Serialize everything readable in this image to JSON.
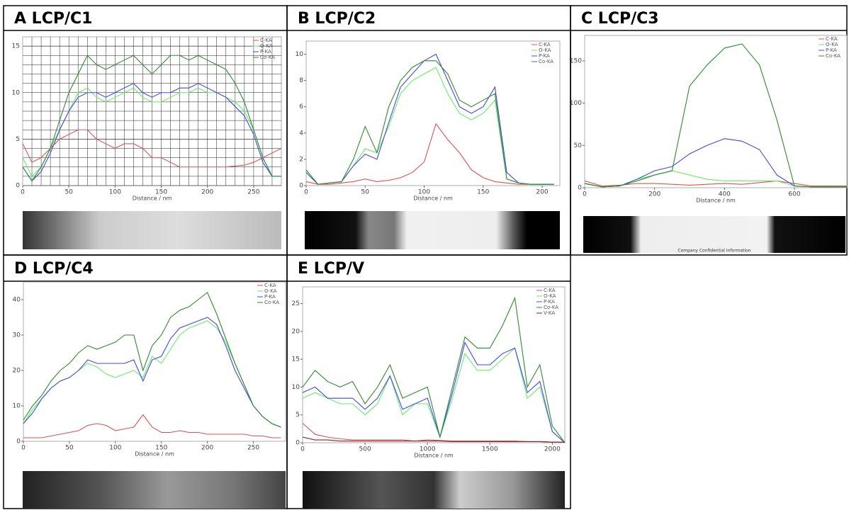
{
  "chart_data": [
    {
      "type": "line",
      "title": "A  LCP/C1",
      "x_label": "Distance / nm",
      "grid": true,
      "xlim": [
        0,
        280
      ],
      "ylim": [
        0,
        16
      ],
      "xticks": [
        0,
        50,
        100,
        150,
        200,
        250
      ],
      "yticks": [
        0,
        5,
        10,
        15
      ],
      "x": [
        0,
        10,
        20,
        30,
        40,
        50,
        60,
        70,
        80,
        90,
        100,
        110,
        120,
        130,
        140,
        150,
        160,
        170,
        180,
        190,
        200,
        210,
        220,
        230,
        240,
        250,
        260,
        270,
        280
      ],
      "series": [
        {
          "name": "C-KA",
          "color": "#e05050",
          "values": [
            4.5,
            2.5,
            3,
            4,
            5,
            5.5,
            6,
            6,
            5,
            4.5,
            4,
            4.5,
            4.5,
            4,
            3,
            3,
            2.5,
            2,
            2,
            2,
            2,
            2,
            2,
            2.1,
            2.2,
            2.5,
            3,
            3.5,
            4
          ]
        },
        {
          "name": "O-KA",
          "color": "#66ee66",
          "values": [
            3,
            1,
            2,
            4,
            6,
            8,
            10,
            10.5,
            9.5,
            9,
            9.5,
            10,
            10.5,
            9.5,
            9,
            9,
            9.5,
            10,
            10,
            10.5,
            10,
            10,
            9.5,
            9,
            8,
            6,
            3,
            1,
            1
          ]
        },
        {
          "name": "P-KA",
          "color": "#4444ee",
          "values": [
            2,
            0.5,
            1.5,
            3.5,
            6,
            8,
            9.5,
            10,
            10,
            9.5,
            10,
            10.5,
            11,
            10,
            9.5,
            10,
            10,
            10.5,
            10.5,
            11,
            10.5,
            10,
            9.5,
            8.5,
            7.5,
            5.5,
            2.5,
            1,
            1
          ]
        },
        {
          "name": "Co-KA",
          "color": "#2e8b2e",
          "values": [
            2,
            0.5,
            2,
            4,
            7,
            10,
            12,
            14,
            13,
            12.5,
            13,
            13.5,
            14,
            13,
            12,
            13,
            14,
            14,
            13.5,
            14,
            13.5,
            13,
            12.5,
            11,
            9,
            6,
            3,
            1,
            1
          ]
        }
      ]
    },
    {
      "type": "line",
      "title": "B  LCP/C2",
      "x_label": "Distance / nm",
      "grid": false,
      "xlim": [
        0,
        215
      ],
      "ylim": [
        0,
        11
      ],
      "xticks": [
        0,
        50,
        100,
        150,
        200
      ],
      "yticks": [
        0,
        2,
        4,
        6,
        8,
        10
      ],
      "x": [
        0,
        10,
        20,
        30,
        40,
        50,
        60,
        70,
        80,
        90,
        100,
        110,
        120,
        130,
        140,
        150,
        160,
        170,
        180,
        190,
        200,
        210
      ],
      "series": [
        {
          "name": "C-KA",
          "color": "#e05050",
          "values": [
            0.3,
            0.1,
            0.1,
            0.2,
            0.3,
            0.5,
            0.3,
            0.4,
            0.6,
            1,
            1.8,
            4.7,
            3.5,
            2.5,
            1.2,
            0.6,
            0.3,
            0.2,
            0.1,
            0.1,
            0.1,
            0.1
          ]
        },
        {
          "name": "O-KA",
          "color": "#66ee66",
          "values": [
            1,
            0.1,
            0.2,
            0.3,
            1.5,
            2.8,
            2.5,
            4.5,
            7,
            8,
            8.5,
            9,
            7,
            5.5,
            5,
            5.5,
            6.5,
            0.5,
            0.2,
            0.1,
            0.1,
            0.1
          ]
        },
        {
          "name": "P-KA",
          "color": "#4444ee",
          "values": [
            1,
            0.1,
            0.2,
            0.3,
            1.5,
            2.4,
            2,
            4.8,
            7.5,
            8.5,
            9.5,
            10,
            8,
            6,
            5.5,
            6,
            7.5,
            1,
            0.2,
            0.1,
            0.1,
            0.1
          ]
        },
        {
          "name": "Co-KA",
          "color": "#2e8b2e",
          "values": [
            1.2,
            0.1,
            0.2,
            0.3,
            2,
            4.5,
            2.5,
            6,
            8,
            9,
            9.5,
            9.5,
            8.5,
            6.5,
            6,
            6.5,
            7,
            0.5,
            0.2,
            0.1,
            0.1,
            0.1
          ]
        }
      ]
    },
    {
      "type": "line",
      "title": "C  LCP/C3",
      "x_label": "Distance / nm",
      "grid": false,
      "image_caption": "Company Confidential Information",
      "xlim": [
        0,
        750
      ],
      "ylim": [
        0,
        180
      ],
      "xticks": [
        0,
        200,
        400,
        600
      ],
      "yticks": [
        0,
        50,
        100,
        150
      ],
      "x": [
        0,
        50,
        100,
        150,
        200,
        250,
        300,
        350,
        400,
        450,
        500,
        550,
        600,
        650,
        700,
        750
      ],
      "series": [
        {
          "name": "C-KA",
          "color": "#e05050",
          "values": [
            8,
            2,
            3,
            5,
            5,
            4,
            3,
            4,
            5,
            4,
            6,
            8,
            5,
            2,
            2,
            2
          ]
        },
        {
          "name": "O-KA",
          "color": "#66ee66",
          "values": [
            5,
            1,
            2,
            10,
            15,
            20,
            15,
            10,
            8,
            8,
            8,
            8,
            2,
            1,
            1,
            1
          ]
        },
        {
          "name": "P-KA",
          "color": "#4444ee",
          "values": [
            5,
            1,
            2,
            10,
            20,
            25,
            40,
            50,
            58,
            55,
            45,
            15,
            2,
            1,
            1,
            1
          ]
        },
        {
          "name": "Co-KA",
          "color": "#2e8b2e",
          "values": [
            5,
            1,
            2,
            8,
            15,
            20,
            120,
            145,
            165,
            170,
            145,
            80,
            2,
            1,
            1,
            1
          ]
        }
      ]
    },
    {
      "type": "line",
      "title": "D  LCP/C4",
      "x_label": "Distance / nm",
      "grid": false,
      "xlim": [
        0,
        285
      ],
      "ylim": [
        0,
        45
      ],
      "xticks": [
        0,
        50,
        100,
        150,
        200,
        250
      ],
      "yticks": [
        0,
        10,
        20,
        30,
        40
      ],
      "x": [
        0,
        10,
        20,
        30,
        40,
        50,
        60,
        70,
        80,
        90,
        100,
        110,
        120,
        130,
        140,
        150,
        160,
        170,
        180,
        190,
        200,
        210,
        220,
        230,
        240,
        250,
        260,
        270,
        280
      ],
      "series": [
        {
          "name": "C-KA",
          "color": "#e05050",
          "values": [
            1,
            1,
            1,
            1.5,
            2,
            2.5,
            3,
            4.5,
            5,
            4.5,
            3,
            3.5,
            4,
            7.5,
            4,
            2.5,
            2.5,
            3,
            2.5,
            2.5,
            2,
            2,
            2,
            2,
            2,
            1.5,
            1.5,
            1,
            1
          ]
        },
        {
          "name": "O-KA",
          "color": "#66ee66",
          "values": [
            5,
            9,
            12,
            15,
            17,
            18,
            20,
            22,
            21,
            19,
            18,
            19,
            20,
            18,
            24,
            22,
            26,
            30,
            32,
            33,
            34,
            32,
            28,
            22,
            16,
            10,
            7,
            5,
            4
          ]
        },
        {
          "name": "P-KA",
          "color": "#4444ee",
          "values": [
            5,
            8,
            12,
            15,
            17,
            18,
            20,
            23,
            22,
            22,
            22,
            22,
            23,
            17,
            23,
            24,
            29,
            32,
            33,
            34,
            35,
            33,
            27,
            20,
            15,
            10,
            7,
            5,
            4
          ]
        },
        {
          "name": "Co-KA",
          "color": "#2e8b2e",
          "values": [
            6,
            10,
            13,
            17,
            20,
            22,
            25,
            27,
            26,
            27,
            28,
            30,
            30,
            20,
            27,
            30,
            35,
            37,
            38,
            40,
            42,
            36,
            29,
            22,
            16,
            10,
            7,
            5,
            4
          ]
        }
      ]
    },
    {
      "type": "line",
      "title": "E  LCP/V",
      "x_label": "Distance / nm",
      "grid": false,
      "xlim": [
        0,
        2100
      ],
      "ylim": [
        0,
        28
      ],
      "xticks": [
        0,
        500,
        1000,
        1500,
        2000
      ],
      "yticks": [
        0,
        5,
        10,
        15,
        20,
        25
      ],
      "x": [
        0,
        100,
        200,
        300,
        400,
        500,
        600,
        700,
        800,
        900,
        1000,
        1100,
        1200,
        1300,
        1400,
        1500,
        1600,
        1700,
        1800,
        1900,
        2000,
        2100
      ],
      "series": [
        {
          "name": "C-KA",
          "color": "#e05050",
          "values": [
            3.5,
            1.5,
            1,
            0.7,
            0.5,
            0.5,
            0.5,
            0.5,
            0.5,
            0.3,
            0.5,
            0.4,
            0.3,
            0.3,
            0.3,
            0.3,
            0.3,
            0.3,
            0.2,
            0.2,
            0.1,
            0.1
          ]
        },
        {
          "name": "O-KA",
          "color": "#66ee66",
          "values": [
            8,
            9,
            8,
            7,
            7,
            5,
            7,
            12,
            5,
            7,
            7,
            1,
            8,
            16,
            13,
            13,
            15,
            17,
            8,
            10,
            2,
            0
          ]
        },
        {
          "name": "P-KA",
          "color": "#4444ee",
          "values": [
            9,
            10,
            8,
            8,
            8,
            6,
            8,
            12,
            6,
            7,
            8,
            1,
            9,
            18,
            14,
            14,
            16,
            17,
            9,
            11,
            2,
            0
          ]
        },
        {
          "name": "Co-KA",
          "color": "#2e8b2e",
          "values": [
            10,
            13,
            11,
            10,
            11,
            7,
            10,
            14,
            8,
            9,
            10,
            1,
            10,
            19,
            17,
            17,
            21,
            26,
            10,
            14,
            3,
            0
          ]
        },
        {
          "name": "V-KA",
          "color": "#8b2020",
          "values": [
            1,
            0.5,
            0.5,
            0.3,
            0.3,
            0.3,
            0.3,
            0.3,
            0.3,
            0.3,
            0.3,
            0.3,
            0.2,
            0.2,
            0.2,
            0.2,
            0.2,
            0.2,
            0.2,
            0.2,
            0.1,
            0.1
          ]
        }
      ]
    }
  ]
}
